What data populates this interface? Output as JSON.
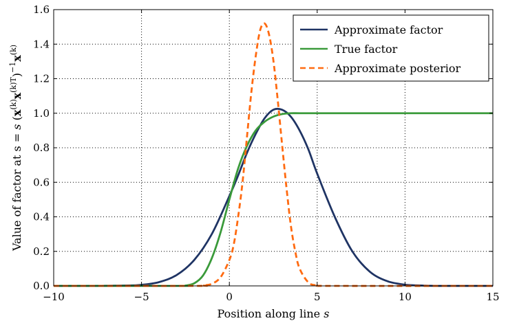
{
  "chart_data": {
    "type": "line",
    "xlabel": "Position along line s",
    "ylabel": "Value of factor at s = s (x(k)ᵀx(k))⁻¹x(k)",
    "xlim": [
      -10,
      15
    ],
    "ylim": [
      0,
      1.6
    ],
    "xticks": [
      -10,
      -5,
      0,
      5,
      10,
      15
    ],
    "xtick_labels": [
      "−10",
      "−5",
      "0",
      "5",
      "10",
      "15"
    ],
    "yticks": [
      0.0,
      0.2,
      0.4,
      0.6,
      0.8,
      1.0,
      1.2,
      1.4,
      1.6
    ],
    "ytick_labels": [
      "0.0",
      "0.2",
      "0.4",
      "0.6",
      "0.8",
      "1.0",
      "1.2",
      "1.4",
      "1.6"
    ],
    "grid": true,
    "legend_position": "top-right",
    "series": [
      {
        "name": "Approximate factor",
        "color": "#1f3464",
        "style": "solid",
        "x": [
          -10,
          -8,
          -6,
          -5,
          -4,
          -3,
          -2,
          -1,
          0,
          0.5,
          1,
          1.5,
          2,
          2.5,
          3,
          3.5,
          4,
          4.5,
          5,
          6,
          7,
          8,
          9,
          10,
          11,
          12,
          15
        ],
        "y": [
          0.0,
          0.0,
          0.002,
          0.006,
          0.022,
          0.063,
          0.15,
          0.3,
          0.52,
          0.64,
          0.77,
          0.88,
          0.97,
          1.02,
          1.02,
          0.98,
          0.9,
          0.79,
          0.65,
          0.4,
          0.2,
          0.082,
          0.027,
          0.007,
          0.002,
          0.0,
          0.0
        ]
      },
      {
        "name": "True factor",
        "color": "#3a9a3a",
        "style": "solid",
        "x": [
          -10,
          -3,
          -2.5,
          -2,
          -1.5,
          -1,
          -0.5,
          0,
          0.5,
          1,
          1.5,
          2,
          2.5,
          3,
          3.5,
          4,
          5,
          6,
          8,
          10,
          12,
          15
        ],
        "y": [
          0.0,
          0.0,
          0.002,
          0.015,
          0.06,
          0.16,
          0.31,
          0.5,
          0.68,
          0.81,
          0.9,
          0.95,
          0.98,
          0.995,
          1.0,
          1.0,
          1.0,
          1.0,
          1.0,
          1.0,
          1.0,
          1.0
        ]
      },
      {
        "name": "Approximate posterior",
        "color": "#ff6a10",
        "style": "dashed",
        "x": [
          -10,
          -2,
          -1.5,
          -1,
          -0.5,
          0,
          0.25,
          0.5,
          0.75,
          1,
          1.25,
          1.5,
          1.75,
          2,
          2.25,
          2.5,
          2.75,
          3,
          3.25,
          3.5,
          3.75,
          4,
          4.5,
          5,
          6,
          15
        ],
        "y": [
          0.0,
          0.0,
          0.003,
          0.012,
          0.05,
          0.15,
          0.24,
          0.4,
          0.6,
          0.86,
          1.12,
          1.33,
          1.48,
          1.52,
          1.46,
          1.31,
          1.08,
          0.82,
          0.57,
          0.35,
          0.2,
          0.1,
          0.02,
          0.003,
          0.0,
          0.0
        ]
      }
    ]
  }
}
